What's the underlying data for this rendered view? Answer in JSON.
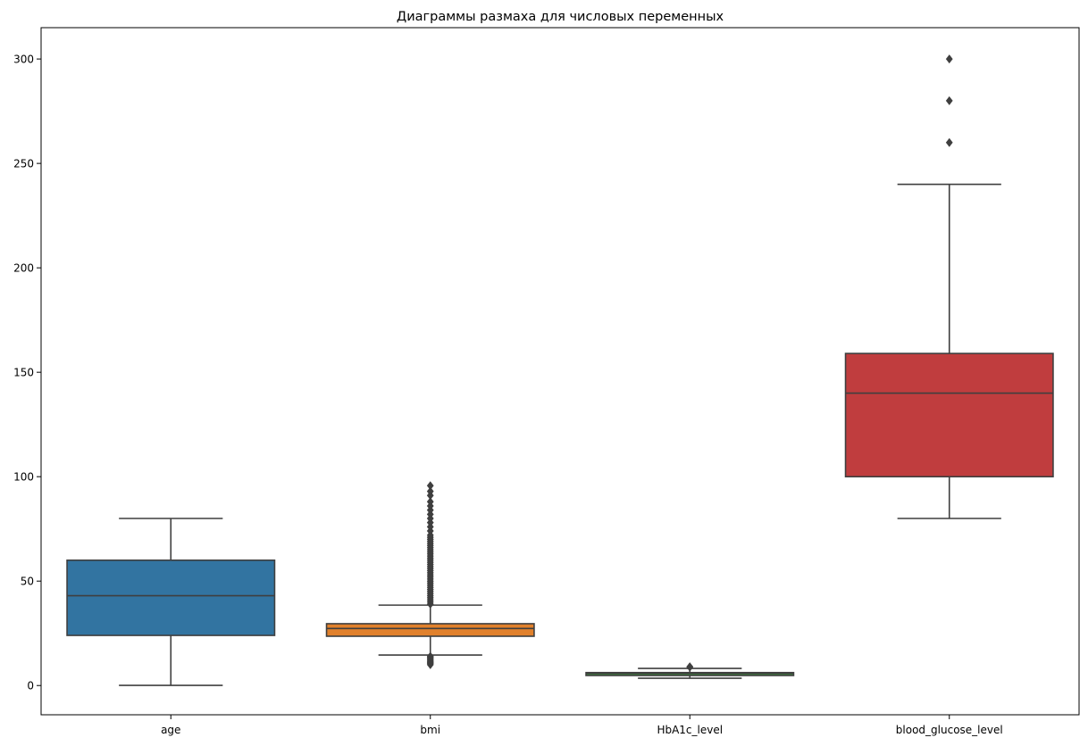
{
  "chart_data": {
    "type": "box",
    "title": "Диаграммы размаха для числовых переменных",
    "xlabel": "",
    "ylabel": "",
    "ylim": [
      -14,
      315
    ],
    "yticks": [
      0,
      50,
      100,
      150,
      200,
      250,
      300
    ],
    "grid": false,
    "categories": [
      "age",
      "bmi",
      "HbA1c_level",
      "blood_glucose_level"
    ],
    "colors": [
      "#3274a1",
      "#e1812c",
      "#3a923a",
      "#c03d3e"
    ],
    "edge_color": "#3f3f3f",
    "boxes": [
      {
        "name": "age",
        "whisker_low": 0.08,
        "q1": 24,
        "median": 43,
        "q3": 60,
        "whisker_high": 80,
        "outliers": []
      },
      {
        "name": "bmi",
        "whisker_low": 14.6,
        "q1": 23.6,
        "median": 27.3,
        "q3": 29.6,
        "whisker_high": 38.5,
        "outliers": [
          10.0,
          10.5,
          11.0,
          11.5,
          12.0,
          12.5,
          13.0,
          13.5,
          14.0,
          39,
          40,
          41,
          42,
          43,
          44,
          45,
          46,
          47,
          48,
          49,
          50,
          51,
          52,
          53,
          54,
          55,
          56,
          57,
          58,
          59,
          60,
          61,
          62,
          63,
          64,
          65,
          66,
          67,
          68,
          69,
          70,
          71,
          72,
          74,
          76,
          78,
          80,
          82,
          84,
          86,
          88,
          91,
          93,
          95.7
        ]
      },
      {
        "name": "HbA1c_level",
        "whisker_low": 3.5,
        "q1": 4.8,
        "median": 5.8,
        "q3": 6.2,
        "whisker_high": 8.2,
        "outliers": [
          8.8,
          9.0
        ]
      },
      {
        "name": "blood_glucose_level",
        "whisker_low": 80,
        "q1": 100,
        "median": 140,
        "q3": 159,
        "whisker_high": 240,
        "outliers": [
          260,
          280,
          300
        ]
      }
    ]
  }
}
